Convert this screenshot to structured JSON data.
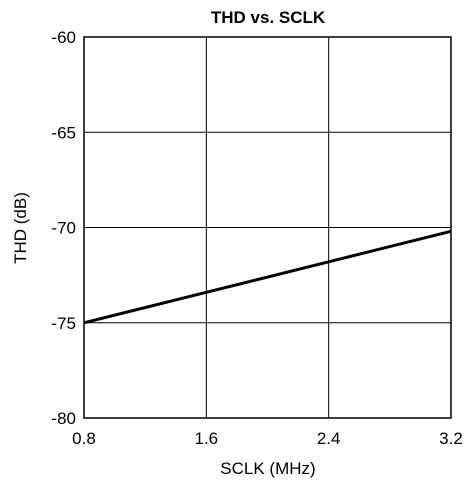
{
  "chart_data": {
    "type": "line",
    "title": "THD vs. SCLK",
    "xlabel": "SCLK (MHz)",
    "ylabel": "THD (dB)",
    "xlim": [
      0.8,
      3.2
    ],
    "ylim": [
      -80,
      -60
    ],
    "x_ticks": [
      0.8,
      1.6,
      2.4,
      3.2
    ],
    "x_tick_labels": [
      "0.8",
      "1.6",
      "2.4",
      "3.2"
    ],
    "y_ticks": [
      -60,
      -65,
      -70,
      -75,
      -80
    ],
    "y_tick_labels": [
      "-60",
      "-65",
      "-70",
      "-75",
      "-80"
    ],
    "grid": true,
    "legend": "none",
    "series": [
      {
        "x": [
          0.8,
          1.6,
          2.4,
          3.2
        ],
        "y": [
          -75.0,
          -73.4,
          -71.8,
          -70.2
        ],
        "color": "#000000"
      }
    ]
  }
}
